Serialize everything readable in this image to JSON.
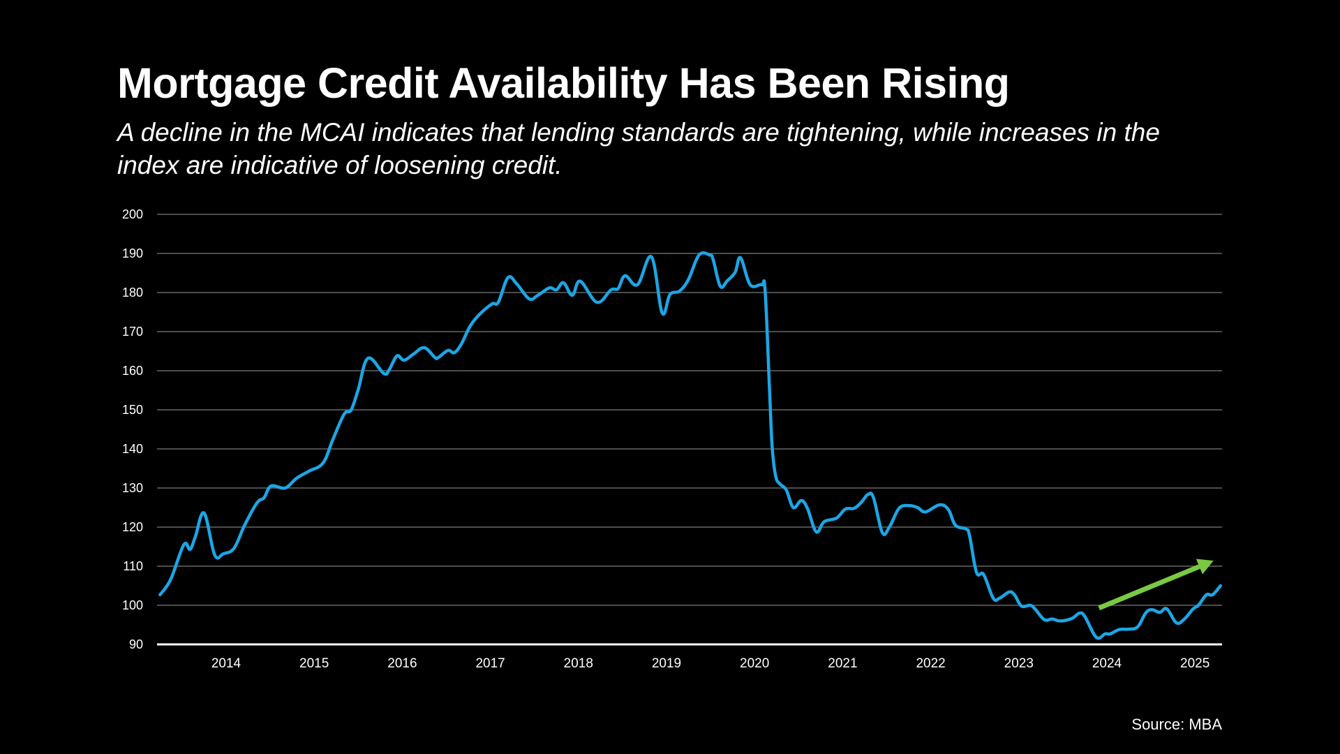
{
  "header": {
    "title": "Mortgage Credit Availability Has Been Rising",
    "subtitle": "A decline in the MCAI indicates that lending standards are tightening, while increases in the index are indicative of loosening credit."
  },
  "footer": {
    "source": "Source: MBA"
  },
  "colors": {
    "background": "#000000",
    "line": "#1ba6e6",
    "arrow": "#7ac943",
    "grid": "#4d4d4d",
    "axis": "#ffffff",
    "text": "#ffffff"
  },
  "chart_data": {
    "type": "line",
    "title": "Mortgage Credit Availability Has Been Rising",
    "subtitle": "A decline in the MCAI indicates that lending standards are tightening, while increases in the index are indicative of loosening credit.",
    "xlabel": "",
    "ylabel": "",
    "ylim": [
      90,
      200
    ],
    "xlim": [
      2013.25,
      2025.3
    ],
    "yticks": [
      90,
      100,
      110,
      120,
      130,
      140,
      150,
      160,
      170,
      180,
      190,
      200
    ],
    "ytick_labels": [
      "90",
      "100",
      "110",
      "120",
      "130",
      "140",
      "150",
      "160",
      "170",
      "180",
      "190",
      "200"
    ],
    "xticks": [
      2014,
      2015,
      2016,
      2017,
      2018,
      2019,
      2020,
      2021,
      2022,
      2023,
      2024,
      2025
    ],
    "xtick_labels": [
      "2014",
      "2015",
      "2016",
      "2017",
      "2018",
      "2019",
      "2020",
      "2021",
      "2022",
      "2023",
      "2024",
      "2025"
    ],
    "grid": true,
    "legend": "none",
    "series": [
      {
        "name": "MCAI",
        "x": [
          2013.25,
          2013.37,
          2013.52,
          2013.59,
          2013.65,
          2013.75,
          2013.87,
          2013.97,
          2014.09,
          2014.21,
          2014.35,
          2014.43,
          2014.51,
          2014.67,
          2014.8,
          2014.94,
          2015.1,
          2015.21,
          2015.34,
          2015.42,
          2015.5,
          2015.61,
          2015.79,
          2015.85,
          2015.94,
          2016.02,
          2016.13,
          2016.25,
          2016.37,
          2016.41,
          2016.52,
          2016.59,
          2016.67,
          2016.77,
          2016.88,
          2017.02,
          2017.09,
          2017.2,
          2017.3,
          2017.44,
          2017.54,
          2017.67,
          2017.75,
          2017.83,
          2017.93,
          2018.02,
          2018.21,
          2018.37,
          2018.45,
          2018.53,
          2018.67,
          2018.83,
          2018.95,
          2019.04,
          2019.15,
          2019.25,
          2019.37,
          2019.49,
          2019.53,
          2019.61,
          2019.69,
          2019.78,
          2019.84,
          2019.95,
          2020.08,
          2020.12,
          2020.17,
          2020.2,
          2020.24,
          2020.29,
          2020.36,
          2020.44,
          2020.53,
          2020.6,
          2020.7,
          2020.79,
          2020.93,
          2021.03,
          2021.13,
          2021.21,
          2021.29,
          2021.35,
          2021.45,
          2021.53,
          2021.64,
          2021.75,
          2021.85,
          2021.94,
          2022.1,
          2022.2,
          2022.28,
          2022.4,
          2022.44,
          2022.52,
          2022.6,
          2022.71,
          2022.78,
          2022.89,
          2022.95,
          2023.03,
          2023.13,
          2023.19,
          2023.29,
          2023.38,
          2023.47,
          2023.6,
          2023.69,
          2023.75,
          2023.88,
          2023.98,
          2024.04,
          2024.14,
          2024.25,
          2024.35,
          2024.44,
          2024.51,
          2024.6,
          2024.68,
          2024.79,
          2024.88,
          2024.98,
          2025.04,
          2025.13,
          2025.2,
          2025.29
        ],
        "values": [
          102.7,
          106.6,
          115.5,
          114.3,
          117.5,
          123.6,
          112.9,
          113.2,
          114.6,
          120.5,
          126.2,
          127.5,
          130.5,
          130.0,
          132.5,
          134.3,
          136.4,
          142.3,
          148.9,
          150.0,
          155.2,
          163.2,
          159.3,
          160.2,
          163.8,
          162.7,
          164.3,
          165.9,
          163.4,
          163.4,
          165.2,
          164.6,
          166.8,
          171.4,
          174.5,
          177.1,
          177.5,
          183.8,
          182.2,
          178.4,
          179.3,
          181.2,
          180.7,
          182.5,
          179.3,
          182.9,
          177.5,
          180.7,
          181.0,
          184.3,
          182.0,
          189.1,
          174.8,
          179.5,
          180.4,
          183.4,
          189.6,
          189.6,
          188.4,
          181.6,
          183.0,
          185.2,
          188.9,
          182.0,
          182.0,
          180.4,
          154.8,
          140.5,
          133.0,
          131.0,
          129.5,
          125.0,
          126.8,
          124.8,
          118.8,
          121.4,
          122.3,
          124.6,
          124.8,
          126.3,
          128.4,
          127.5,
          118.6,
          120.0,
          124.8,
          125.5,
          125.0,
          123.9,
          125.7,
          124.5,
          120.5,
          119.5,
          117.9,
          108.4,
          107.9,
          101.8,
          101.8,
          103.4,
          102.7,
          99.8,
          100.0,
          98.9,
          96.3,
          96.5,
          96.0,
          96.6,
          98.0,
          97.1,
          91.8,
          92.7,
          92.7,
          93.8,
          93.9,
          94.5,
          98.0,
          98.9,
          98.2,
          99.1,
          95.5,
          96.5,
          99.1,
          100.0,
          102.7,
          102.7,
          105.0
        ]
      }
    ],
    "annotations": [
      {
        "type": "arrow",
        "label": "trend-up-arrow",
        "from": [
          2023.91,
          99.3
        ],
        "to": [
          2025.21,
          111.4
        ]
      }
    ]
  }
}
